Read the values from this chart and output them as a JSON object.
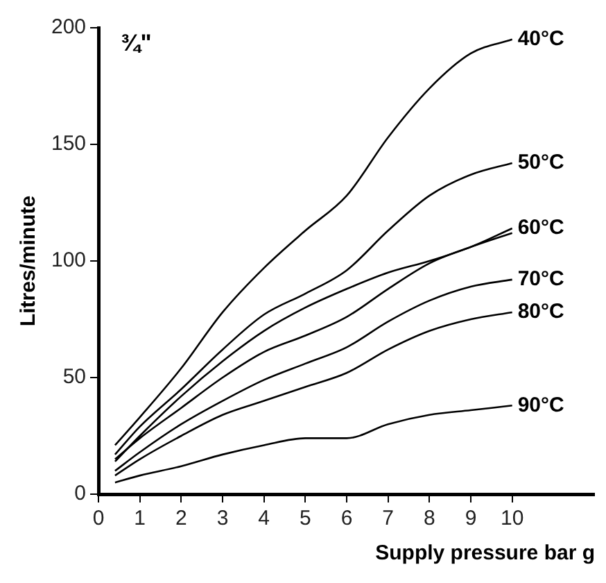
{
  "chart_data": {
    "type": "line",
    "xlabel": "Supply pressure bar g",
    "ylabel": "Litres/minute",
    "annotations": [
      "¾\""
    ],
    "x": [
      0.4,
      1,
      2,
      3,
      4,
      5,
      6,
      7,
      8,
      9,
      10
    ],
    "series": [
      {
        "name": "40°C",
        "color": "#000000",
        "values": [
          21,
          33,
          54,
          78,
          97,
          113,
          128,
          153,
          174,
          189,
          195
        ]
      },
      {
        "name": "50°C",
        "color": "#000000",
        "values": [
          17,
          29,
          45,
          62,
          77,
          86,
          96,
          113,
          128,
          137,
          142
        ]
      },
      {
        "name": "60°C",
        "color": "#000000",
        "values": [
          14,
          25,
          42,
          57,
          70,
          80,
          88,
          95,
          100,
          106,
          114
        ]
      },
      {
        "color": "#000000",
        "values": [
          15,
          24,
          37,
          50,
          61,
          68,
          76,
          88,
          99,
          106,
          112
        ]
      },
      {
        "name": "70°C",
        "color": "#000000",
        "values": [
          10,
          18,
          30,
          40,
          49,
          56,
          63,
          74,
          83,
          89,
          92
        ]
      },
      {
        "name": "80°C",
        "color": "#000000",
        "values": [
          8,
          15,
          25,
          34,
          40,
          46,
          52,
          62,
          70,
          75,
          78
        ]
      },
      {
        "name": "90°C",
        "color": "#000000",
        "values": [
          5,
          8,
          12,
          17,
          21,
          24,
          24,
          30,
          34,
          36,
          38
        ]
      }
    ],
    "xlim": [
      0,
      12
    ],
    "xticks": [
      0,
      1,
      2,
      3,
      4,
      5,
      6,
      7,
      8,
      9,
      10
    ],
    "ylim": [
      0,
      200
    ],
    "yticks": [
      0,
      50,
      100,
      150,
      200
    ],
    "grid": false,
    "legend": false,
    "marker": "none",
    "line_style": "solid"
  }
}
